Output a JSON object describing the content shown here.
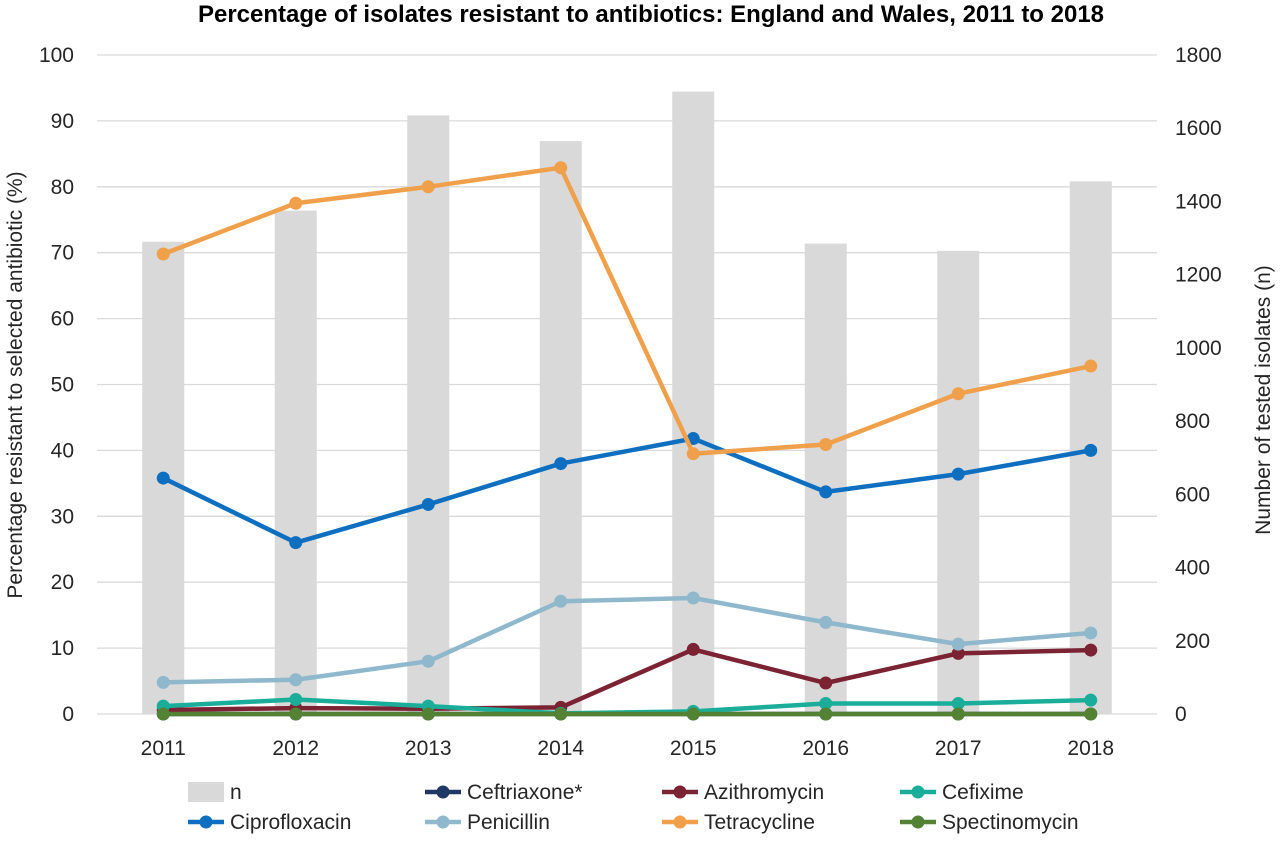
{
  "chart_data": {
    "type": "bar+line",
    "title": "Percentage of isolates resistant to antibiotics: England and Wales, 2011 to 2018",
    "categories": [
      "2011",
      "2012",
      "2013",
      "2014",
      "2015",
      "2016",
      "2017",
      "2018"
    ],
    "y_left": {
      "label": "Percentage resistant to selected antibiotic (%)",
      "min": 0,
      "max": 100,
      "ticks": [
        "0",
        "10",
        "20",
        "30",
        "40",
        "50",
        "60",
        "70",
        "80",
        "90",
        "100"
      ]
    },
    "y_right": {
      "label": "Number of tested isolates (n)",
      "min": 0,
      "max": 1800,
      "ticks": [
        "0",
        "200",
        "400",
        "600",
        "800",
        "1000",
        "1200",
        "1400",
        "1600",
        "1800"
      ]
    },
    "grid": "horizontal",
    "legend_position": "bottom",
    "bars": {
      "name": "n",
      "color": "#d9d9d9",
      "axis": "right",
      "values": [
        1290,
        1375,
        1635,
        1565,
        1700,
        1285,
        1265,
        1455
      ]
    },
    "series": [
      {
        "name": "Ceftriaxone*",
        "color": "#203864",
        "values": [
          0,
          0,
          0,
          0,
          0,
          0,
          0,
          0
        ]
      },
      {
        "name": "Azithromycin",
        "color": "#7b2233",
        "values": [
          0.6,
          0.9,
          0.8,
          1.0,
          9.8,
          4.7,
          9.2,
          9.7
        ]
      },
      {
        "name": "Cefixime",
        "color": "#1aae9a",
        "values": [
          1.2,
          2.2,
          1.2,
          0.1,
          0.4,
          1.6,
          1.6,
          2.1
        ]
      },
      {
        "name": "Ciprofloxacin",
        "color": "#0e6fc0",
        "values": [
          35.8,
          26.0,
          31.8,
          38.0,
          41.8,
          33.7,
          36.4,
          40.0
        ]
      },
      {
        "name": "Penicillin",
        "color": "#8fb8cc",
        "values": [
          4.8,
          5.2,
          8.0,
          17.1,
          17.6,
          13.9,
          10.6,
          12.3
        ]
      },
      {
        "name": "Tetracycline",
        "color": "#f0a04b",
        "values": [
          69.8,
          77.5,
          80.0,
          82.9,
          39.5,
          40.9,
          48.6,
          52.8
        ]
      },
      {
        "name": "Spectinomycin",
        "color": "#548235",
        "values": [
          0,
          0,
          0,
          0,
          0,
          0,
          0,
          0
        ]
      }
    ],
    "legend": [
      [
        "n",
        "Ceftriaxone*",
        "Azithromycin",
        "Cefixime"
      ],
      [
        "Ciprofloxacin",
        "Penicillin",
        "Tetracycline",
        "Spectinomycin"
      ]
    ]
  }
}
